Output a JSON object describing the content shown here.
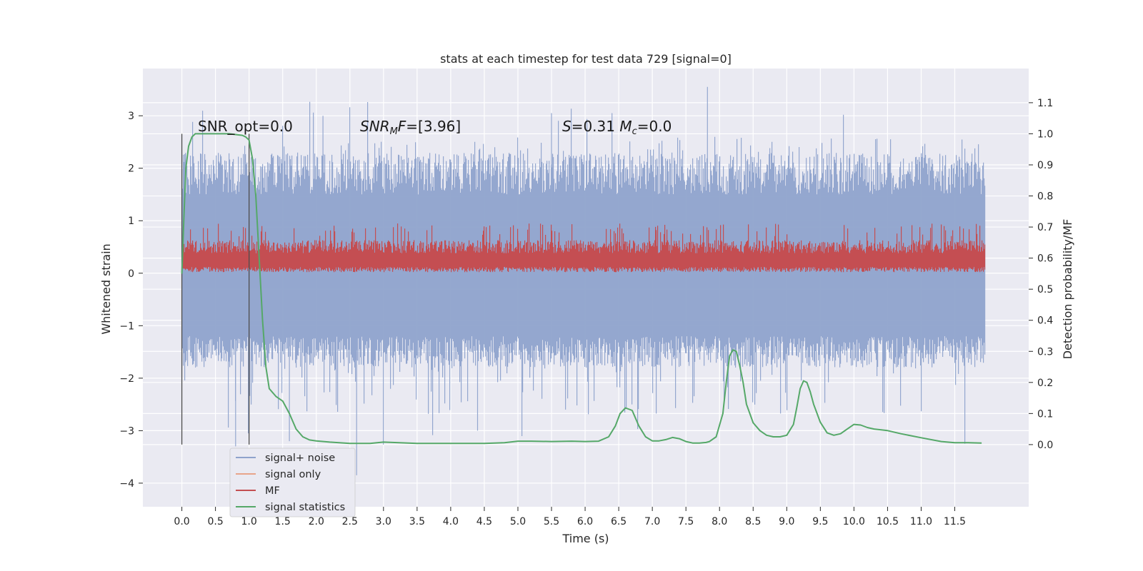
{
  "chart_data": {
    "type": "line",
    "title": "stats at each timestep for test data 729 [signal=0]",
    "xlabel": "Time (s)",
    "ylabel_left": "Whitened strain",
    "ylabel_right": "Detection probability/MF",
    "xlim": [
      -0.58,
      12.6
    ],
    "ylim_left": [
      -4.45,
      3.9
    ],
    "ylim_right": [
      -0.2,
      1.21
    ],
    "x_ticks": [
      0.0,
      0.5,
      1.0,
      1.5,
      2.0,
      2.5,
      3.0,
      3.5,
      4.0,
      4.5,
      5.0,
      5.5,
      6.0,
      6.5,
      7.0,
      7.5,
      8.0,
      8.5,
      9.0,
      9.5,
      10.0,
      10.5,
      11.0,
      11.5
    ],
    "x_tick_labels": [
      "0.0",
      "0.5",
      "1.0",
      "1.5",
      "2.0",
      "2.5",
      "3.0",
      "3.5",
      "4.0",
      "4.5",
      "5.0",
      "5.5",
      "6.0",
      "6.5",
      "7.0",
      "7.5",
      "8.0",
      "8.5",
      "9.0",
      "9.5",
      "10.0",
      "10.5",
      "11.0",
      "11.5"
    ],
    "y_left_ticks": [
      3,
      2,
      1,
      0,
      -1,
      -2,
      -3,
      -4
    ],
    "y_left_tick_labels": [
      "3",
      "2",
      "1",
      "0",
      "−1",
      "−2",
      "−3",
      "−4"
    ],
    "y_right_ticks": [
      1.1,
      1.0,
      0.9,
      0.8,
      0.7,
      0.6,
      0.5,
      0.4,
      0.3,
      0.2,
      0.1,
      0.0
    ],
    "y_right_tick_labels": [
      "1.1",
      "1.0",
      "0.9",
      "0.8",
      "0.7",
      "0.6",
      "0.5",
      "0.4",
      "0.3",
      "0.2",
      "0.1",
      "0.0"
    ],
    "grid": true,
    "legend_placement": "lower-left",
    "annotations": [
      {
        "text": "SNR_opt=0.0",
        "x": 0.2
      },
      {
        "text": "SNR_MF=[3.96]",
        "x": 2.6
      },
      {
        "text": "S=0.31   M_c=0.0",
        "x": 5.6
      }
    ],
    "vlines": [
      0.0,
      1.0
    ],
    "series": [
      {
        "name": "signal+ noise",
        "color": "#8fa3cc",
        "axis": "left",
        "t_range": [
          0.0,
          11.95
        ],
        "band": [
          -1.2,
          1.5
        ],
        "peak_range": [
          -3.85,
          3.55
        ]
      },
      {
        "name": "signal only",
        "color": "#e8a58a",
        "axis": "left",
        "values": []
      },
      {
        "name": "MF",
        "color": "#c44e52",
        "axis": "left",
        "t_range": [
          0.0,
          11.95
        ],
        "band": [
          0.05,
          0.65
        ]
      },
      {
        "name": "signal statistics",
        "color": "#55a868",
        "axis": "right",
        "x": [
          0.0,
          0.03,
          0.06,
          0.1,
          0.15,
          0.2,
          0.3,
          0.5,
          0.7,
          0.9,
          0.95,
          1.0,
          1.05,
          1.1,
          1.15,
          1.2,
          1.25,
          1.3,
          1.4,
          1.5,
          1.6,
          1.7,
          1.8,
          1.9,
          2.0,
          2.2,
          2.5,
          2.8,
          3.0,
          3.5,
          4.0,
          4.5,
          4.8,
          5.0,
          5.2,
          5.5,
          5.8,
          6.0,
          6.2,
          6.35,
          6.45,
          6.52,
          6.6,
          6.7,
          6.8,
          6.9,
          7.0,
          7.1,
          7.2,
          7.3,
          7.4,
          7.5,
          7.6,
          7.7,
          7.8,
          7.85,
          7.95,
          8.05,
          8.1,
          8.15,
          8.2,
          8.25,
          8.3,
          8.35,
          8.4,
          8.5,
          8.6,
          8.7,
          8.8,
          8.9,
          9.0,
          9.1,
          9.15,
          9.2,
          9.25,
          9.3,
          9.35,
          9.4,
          9.5,
          9.6,
          9.7,
          9.8,
          9.9,
          10.0,
          10.1,
          10.2,
          10.3,
          10.5,
          10.7,
          11.0,
          11.3,
          11.5,
          11.7,
          11.9
        ],
        "values": [
          0.55,
          0.73,
          0.89,
          0.96,
          0.99,
          1.0,
          1.0,
          1.0,
          1.0,
          0.995,
          0.99,
          0.98,
          0.92,
          0.8,
          0.6,
          0.4,
          0.25,
          0.18,
          0.155,
          0.14,
          0.1,
          0.05,
          0.025,
          0.015,
          0.012,
          0.008,
          0.004,
          0.004,
          0.008,
          0.004,
          0.004,
          0.004,
          0.006,
          0.011,
          0.011,
          0.01,
          0.011,
          0.01,
          0.011,
          0.025,
          0.06,
          0.1,
          0.118,
          0.11,
          0.06,
          0.025,
          0.012,
          0.012,
          0.016,
          0.023,
          0.019,
          0.01,
          0.005,
          0.005,
          0.007,
          0.01,
          0.025,
          0.1,
          0.2,
          0.285,
          0.305,
          0.3,
          0.255,
          0.2,
          0.13,
          0.07,
          0.045,
          0.03,
          0.025,
          0.025,
          0.03,
          0.065,
          0.12,
          0.18,
          0.205,
          0.2,
          0.17,
          0.13,
          0.072,
          0.038,
          0.03,
          0.035,
          0.05,
          0.065,
          0.063,
          0.055,
          0.05,
          0.045,
          0.035,
          0.022,
          0.01,
          0.006,
          0.006,
          0.005
        ]
      }
    ]
  }
}
